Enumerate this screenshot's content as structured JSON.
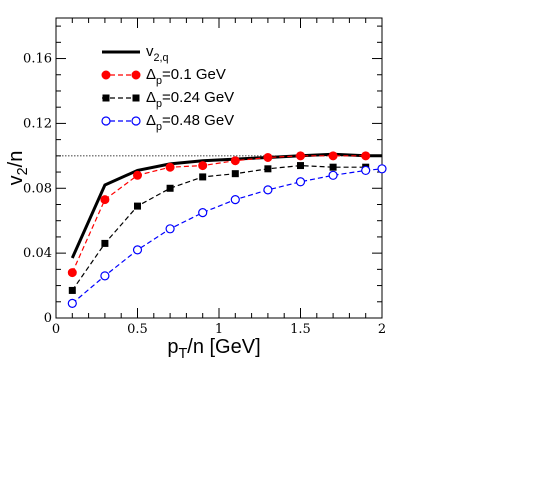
{
  "chart_data": {
    "type": "line",
    "xlabel": {
      "main": "p",
      "sub": "T",
      "rest": "/n [GeV]"
    },
    "ylabel": {
      "main": "v",
      "sub": "2",
      "rest": "/n"
    },
    "xlim": [
      0,
      2
    ],
    "ylim": [
      0,
      0.185
    ],
    "xticks": [
      0,
      0.5,
      1,
      1.5,
      2
    ],
    "xtick_labels": [
      "0",
      "0.5",
      "1",
      "1.5",
      "2"
    ],
    "yticks": [
      0,
      0.04,
      0.08,
      0.12,
      0.16
    ],
    "ytick_labels": [
      "0",
      "0.04",
      "0.08",
      "0.12",
      "0.16"
    ],
    "reference_line": {
      "y": 0.1,
      "style": "dotted"
    },
    "grid": false,
    "legend_position": "top-left",
    "series": [
      {
        "name": {
          "main": "v",
          "sub": "2,q",
          "rest": ""
        },
        "color": "#000000",
        "line": "solid-thick",
        "marker": "none",
        "x": [
          0.1,
          0.3,
          0.5,
          0.7,
          0.9,
          1.1,
          1.3,
          1.5,
          1.7,
          1.9,
          2.0
        ],
        "y": [
          0.037,
          0.082,
          0.091,
          0.095,
          0.097,
          0.098,
          0.099,
          0.1,
          0.101,
          0.1,
          0.1
        ]
      },
      {
        "name": {
          "main": "Δ",
          "sub": "p",
          "rest": "=0.1 GeV"
        },
        "color": "#ff0000",
        "line": "dashed",
        "marker": "filled-circle",
        "x": [
          0.1,
          0.3,
          0.5,
          0.7,
          0.9,
          1.1,
          1.3,
          1.5,
          1.7,
          1.9
        ],
        "y": [
          0.028,
          0.073,
          0.088,
          0.093,
          0.094,
          0.097,
          0.099,
          0.1,
          0.1,
          0.1
        ]
      },
      {
        "name": {
          "main": "Δ",
          "sub": "p",
          "rest": "=0.24  GeV"
        },
        "color": "#000000",
        "line": "dashed",
        "marker": "filled-square",
        "x": [
          0.1,
          0.3,
          0.5,
          0.7,
          0.9,
          1.1,
          1.3,
          1.5,
          1.7,
          1.9
        ],
        "y": [
          0.017,
          0.046,
          0.069,
          0.08,
          0.087,
          0.089,
          0.092,
          0.094,
          0.093,
          0.093
        ]
      },
      {
        "name": {
          "main": "Δ",
          "sub": "p",
          "rest": "=0.48 GeV"
        },
        "color": "#0000ff",
        "line": "dashed",
        "marker": "open-circle",
        "x": [
          0.1,
          0.3,
          0.5,
          0.7,
          0.9,
          1.1,
          1.3,
          1.5,
          1.7,
          1.9,
          2.0
        ],
        "y": [
          0.009,
          0.026,
          0.042,
          0.055,
          0.065,
          0.073,
          0.079,
          0.084,
          0.088,
          0.091,
          0.092
        ]
      }
    ]
  }
}
